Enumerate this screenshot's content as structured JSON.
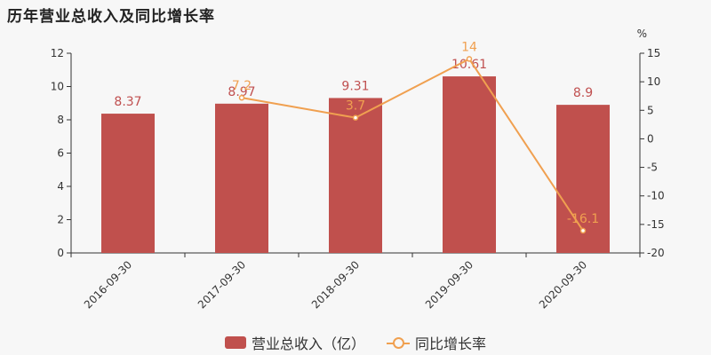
{
  "title": "历年营业总收入及同比增长率",
  "chart_data": {
    "type": "bar",
    "categories": [
      "2016-09-30",
      "2017-09-30",
      "2018-09-30",
      "2019-09-30",
      "2020-09-30"
    ],
    "series": [
      {
        "name": "营业总收入（亿）",
        "type": "bar",
        "axis": "left",
        "values": [
          8.37,
          8.97,
          9.31,
          10.61,
          8.9
        ],
        "color": "#c0504d"
      },
      {
        "name": "同比增长率",
        "type": "line",
        "axis": "right",
        "values": [
          null,
          7.2,
          3.7,
          14,
          -16.1
        ],
        "color": "#f0a050"
      }
    ],
    "y_left": {
      "min": 0,
      "max": 12,
      "ticks": [
        0,
        2,
        4,
        6,
        8,
        10,
        12
      ]
    },
    "y_right": {
      "label": "%",
      "min": -20,
      "max": 15,
      "ticks": [
        -20,
        -15,
        -10,
        -5,
        0,
        5,
        10,
        15
      ]
    },
    "grid": false,
    "legend_position": "bottom"
  }
}
